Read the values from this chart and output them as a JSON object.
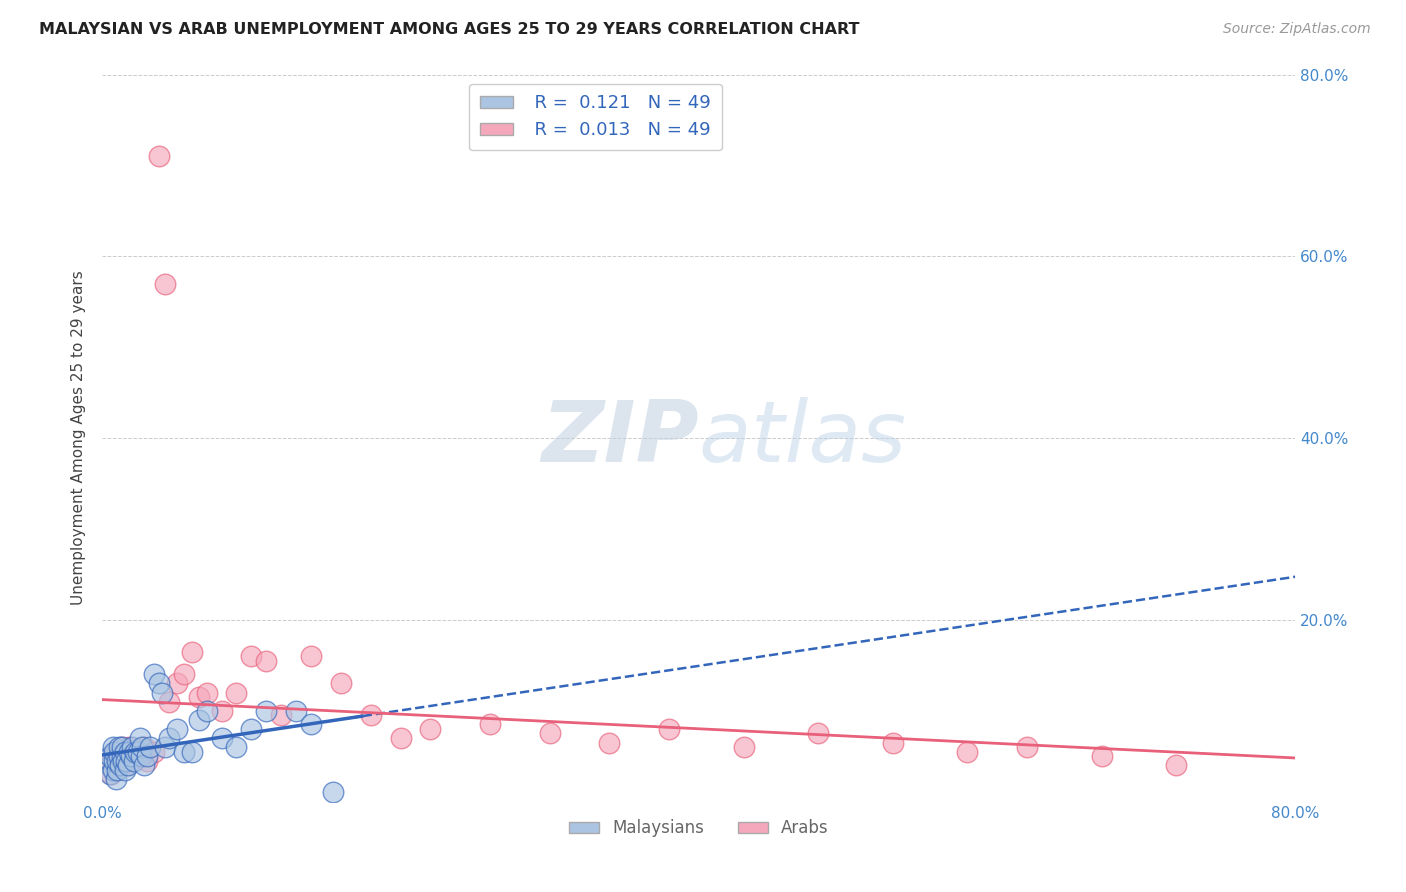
{
  "title": "MALAYSIAN VS ARAB UNEMPLOYMENT AMONG AGES 25 TO 29 YEARS CORRELATION CHART",
  "source": "Source: ZipAtlas.com",
  "ylabel": "Unemployment Among Ages 25 to 29 years",
  "xlim": [
    0.0,
    0.8
  ],
  "ylim": [
    0.0,
    0.8
  ],
  "legend_r_malaysians": "0.121",
  "legend_n_malaysians": "49",
  "legend_r_arabs": "0.013",
  "legend_n_arabs": "49",
  "malaysian_color": "#aac4e2",
  "arab_color": "#f5a8bb",
  "trendline_malaysian_color": "#3366bb",
  "trendline_arab_color": "#e8607a",
  "background_color": "#ffffff",
  "grid_color": "#cccccc",
  "malaysians_x": [
    0.005,
    0.005,
    0.005,
    0.007,
    0.007,
    0.008,
    0.008,
    0.009,
    0.01,
    0.01,
    0.011,
    0.011,
    0.012,
    0.013,
    0.013,
    0.014,
    0.015,
    0.015,
    0.016,
    0.017,
    0.018,
    0.019,
    0.02,
    0.021,
    0.022,
    0.024,
    0.025,
    0.026,
    0.027,
    0.028,
    0.03,
    0.032,
    0.035,
    0.038,
    0.04,
    0.042,
    0.045,
    0.05,
    0.055,
    0.06,
    0.065,
    0.07,
    0.08,
    0.09,
    0.1,
    0.11,
    0.13,
    0.14,
    0.155
  ],
  "malaysians_y": [
    0.04,
    0.03,
    0.05,
    0.06,
    0.035,
    0.045,
    0.055,
    0.025,
    0.035,
    0.045,
    0.05,
    0.06,
    0.04,
    0.05,
    0.06,
    0.045,
    0.055,
    0.035,
    0.045,
    0.04,
    0.055,
    0.05,
    0.06,
    0.045,
    0.055,
    0.055,
    0.07,
    0.05,
    0.06,
    0.04,
    0.05,
    0.06,
    0.14,
    0.13,
    0.12,
    0.06,
    0.07,
    0.08,
    0.055,
    0.055,
    0.09,
    0.1,
    0.07,
    0.06,
    0.08,
    0.1,
    0.1,
    0.085,
    0.01
  ],
  "arabs_x": [
    0.005,
    0.006,
    0.007,
    0.008,
    0.009,
    0.01,
    0.011,
    0.012,
    0.013,
    0.014,
    0.015,
    0.016,
    0.017,
    0.018,
    0.02,
    0.022,
    0.025,
    0.028,
    0.03,
    0.035,
    0.038,
    0.042,
    0.045,
    0.05,
    0.055,
    0.06,
    0.065,
    0.07,
    0.08,
    0.09,
    0.1,
    0.11,
    0.12,
    0.14,
    0.16,
    0.18,
    0.2,
    0.22,
    0.26,
    0.3,
    0.34,
    0.38,
    0.43,
    0.48,
    0.53,
    0.58,
    0.62,
    0.67,
    0.72
  ],
  "arabs_y": [
    0.04,
    0.03,
    0.05,
    0.035,
    0.045,
    0.055,
    0.04,
    0.05,
    0.06,
    0.045,
    0.055,
    0.04,
    0.05,
    0.06,
    0.045,
    0.055,
    0.05,
    0.06,
    0.045,
    0.055,
    0.71,
    0.57,
    0.11,
    0.13,
    0.14,
    0.165,
    0.115,
    0.12,
    0.1,
    0.12,
    0.16,
    0.155,
    0.095,
    0.16,
    0.13,
    0.095,
    0.07,
    0.08,
    0.085,
    0.075,
    0.065,
    0.08,
    0.06,
    0.075,
    0.065,
    0.055,
    0.06,
    0.05,
    0.04
  ]
}
